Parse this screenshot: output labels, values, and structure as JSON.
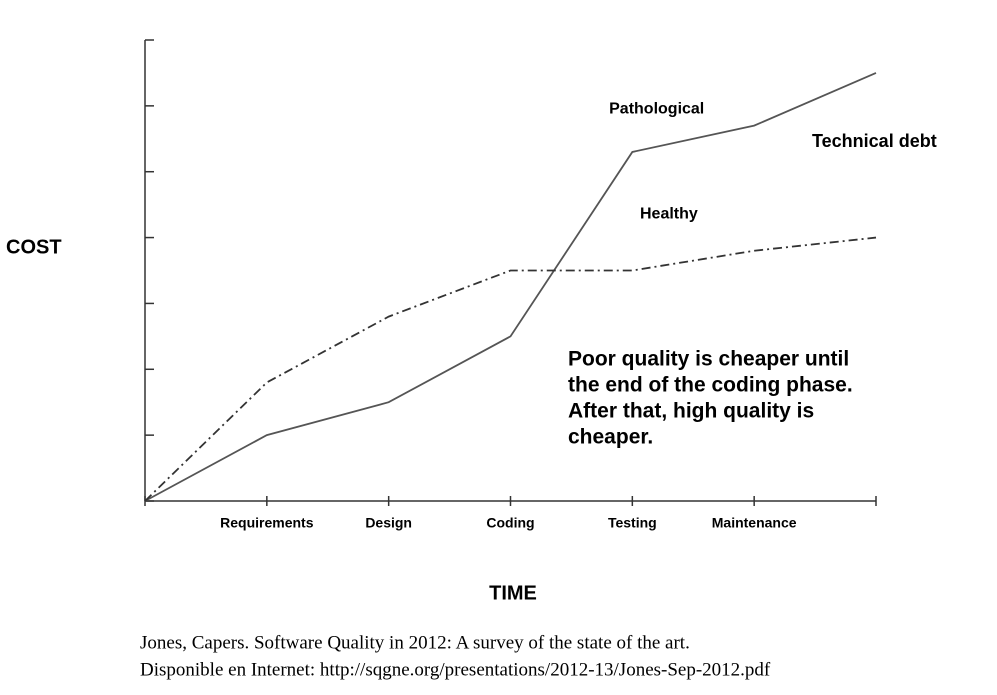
{
  "chart_data": {
    "type": "line",
    "x_label": "TIME",
    "y_label": "COST",
    "categories": [
      null,
      "Requirements",
      "Design",
      "Coding",
      "Testing",
      "Maintenance",
      null
    ],
    "series": [
      {
        "name": "Pathological",
        "color": "#555555",
        "style": "solid",
        "values": [
          0,
          1,
          1.5,
          2.5,
          5.3,
          5.7,
          6.5
        ]
      },
      {
        "name": "Healthy",
        "color": "#333333",
        "style": "dash-dot",
        "values": [
          0,
          1.8,
          2.8,
          3.5,
          3.5,
          3.8,
          4.0
        ]
      }
    ],
    "ylim": [
      0,
      7
    ],
    "yticks": [
      0,
      1,
      2,
      3,
      4,
      5,
      6,
      7
    ],
    "grid": false,
    "annotations": [
      "Technical debt"
    ],
    "note_lines": [
      "Poor quality is cheaper until",
      "the end of the coding phase.",
      "After that, high quality is",
      "cheaper."
    ],
    "source_lines": [
      "Jones, Capers. Software Quality in 2012: A survey of the state of the art.",
      "Disponible en Internet: http://sqgne.org/presentations/2012-13/Jones-Sep-2012.pdf"
    ]
  }
}
